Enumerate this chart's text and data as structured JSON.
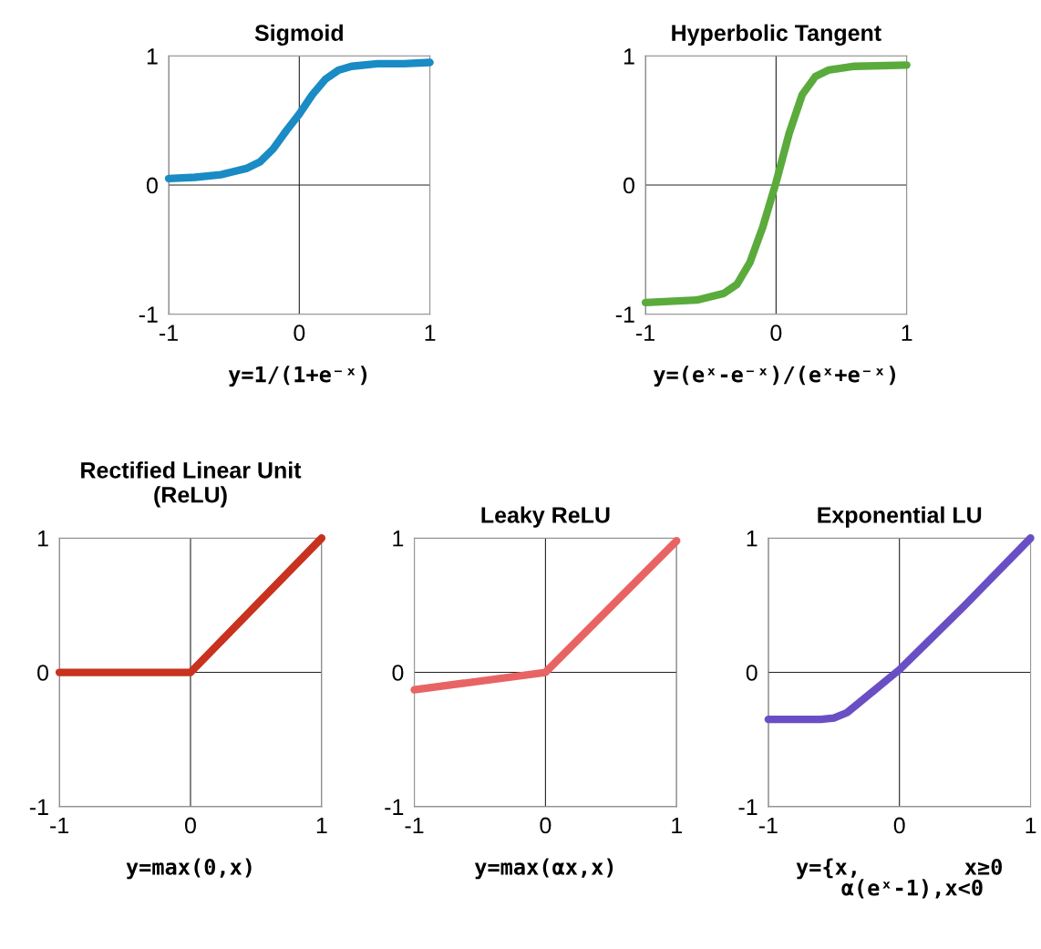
{
  "chart_data": [
    {
      "type": "line",
      "title": "Sigmoid",
      "xlabel": "y=1/(1+e⁻ˣ)",
      "color": "#1a8bc4",
      "grid": true,
      "xlim": [
        -1,
        1
      ],
      "ylim": [
        -1,
        1
      ],
      "xticks": [
        -1,
        0,
        1
      ],
      "yticks": [
        -1,
        0,
        1
      ],
      "x": [
        -1,
        -0.8,
        -0.6,
        -0.4,
        -0.3,
        -0.2,
        -0.1,
        0,
        0.1,
        0.2,
        0.3,
        0.4,
        0.6,
        0.8,
        1
      ],
      "values": [
        0.05,
        0.06,
        0.08,
        0.13,
        0.18,
        0.28,
        0.42,
        0.55,
        0.7,
        0.82,
        0.89,
        0.92,
        0.94,
        0.94,
        0.95
      ]
    },
    {
      "type": "line",
      "title": "Hyperbolic Tangent",
      "xlabel": "y=(eˣ-e⁻ˣ)/(eˣ+e⁻ˣ)",
      "color": "#5aab3c",
      "grid": true,
      "xlim": [
        -1,
        1
      ],
      "ylim": [
        -1,
        1
      ],
      "xticks": [
        -1,
        0,
        1
      ],
      "yticks": [
        -1,
        0,
        1
      ],
      "x": [
        -1,
        -0.6,
        -0.4,
        -0.3,
        -0.2,
        -0.1,
        0,
        0.1,
        0.2,
        0.3,
        0.4,
        0.6,
        1
      ],
      "values": [
        -0.91,
        -0.89,
        -0.84,
        -0.77,
        -0.6,
        -0.32,
        0.02,
        0.4,
        0.7,
        0.84,
        0.89,
        0.92,
        0.93
      ]
    },
    {
      "type": "line",
      "title": "Rectified Linear Unit\n(ReLU)",
      "xlabel": "y=max(0,x)",
      "color": "#c8321e",
      "grid": true,
      "xlim": [
        -1,
        1
      ],
      "ylim": [
        -1,
        1
      ],
      "xticks": [
        -1,
        0,
        1
      ],
      "yticks": [
        -1,
        0,
        1
      ],
      "x": [
        -1,
        0,
        1
      ],
      "values": [
        0,
        0,
        1
      ]
    },
    {
      "type": "line",
      "title": "Leaky ReLU",
      "xlabel": "y=max(αx,x)",
      "color": "#e86464",
      "grid": true,
      "xlim": [
        -1,
        1
      ],
      "ylim": [
        -1,
        1
      ],
      "xticks": [
        -1,
        0,
        1
      ],
      "yticks": [
        -1,
        0,
        1
      ],
      "x": [
        -1,
        0,
        1
      ],
      "values": [
        -0.13,
        0,
        0.98
      ]
    },
    {
      "type": "line",
      "title": "Exponential LU",
      "xlabel": "y={x,        x≥0\n  α(eˣ-1),x<0",
      "color": "#6a4fc4",
      "grid": true,
      "xlim": [
        -1,
        1
      ],
      "ylim": [
        -1,
        1
      ],
      "xticks": [
        -1,
        0,
        1
      ],
      "yticks": [
        -1,
        0,
        1
      ],
      "x": [
        -1,
        -0.6,
        -0.5,
        -0.4,
        -0.3,
        -0.2,
        -0.1,
        0,
        0.5,
        1
      ],
      "values": [
        -0.35,
        -0.35,
        -0.34,
        -0.3,
        -0.22,
        -0.14,
        -0.06,
        0.02,
        0.5,
        1
      ]
    }
  ]
}
